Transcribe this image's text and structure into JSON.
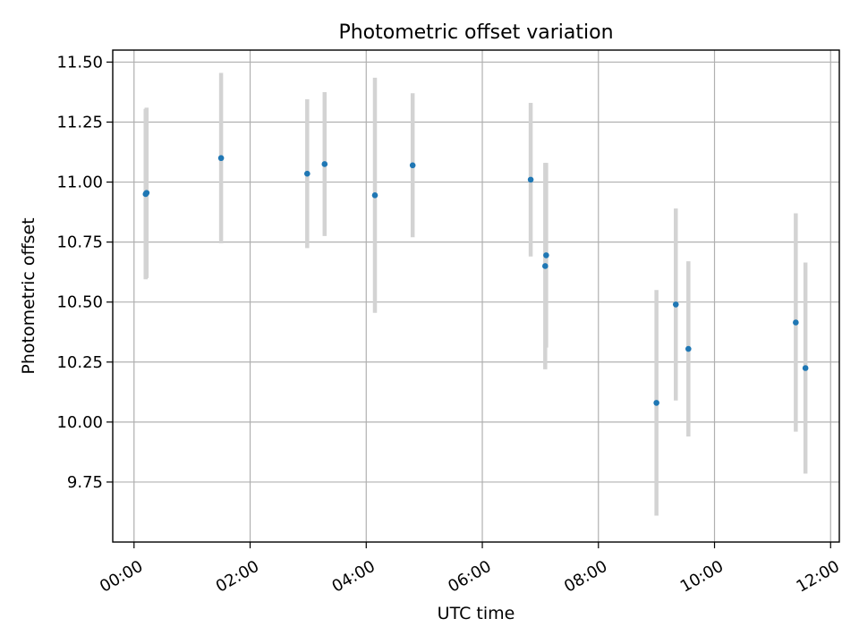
{
  "chart_data": {
    "type": "scatter",
    "title": "Photometric offset variation",
    "xlabel": "UTC time",
    "ylabel": "Photometric offset",
    "x_unit": "hours UTC",
    "xlim": [
      "-00:22",
      "12:09"
    ],
    "ylim": [
      9.5,
      11.55
    ],
    "x_ticks": [
      "00:00",
      "02:00",
      "04:00",
      "06:00",
      "08:00",
      "10:00",
      "12:00"
    ],
    "y_ticks": [
      "9.75",
      "10.00",
      "10.25",
      "10.50",
      "10.75",
      "11.00",
      "11.25",
      "11.50"
    ],
    "grid": true,
    "marker_color": "#1f77b4",
    "errorbar_color": "#d3d3d3",
    "points": [
      {
        "x": "00:12",
        "y": 10.95,
        "yerr": 0.355
      },
      {
        "x": "00:13",
        "y": 10.955,
        "yerr": 0.355
      },
      {
        "x": "01:30",
        "y": 11.1,
        "yerr": 0.355
      },
      {
        "x": "02:59",
        "y": 11.035,
        "yerr": 0.31
      },
      {
        "x": "03:17",
        "y": 11.075,
        "yerr": 0.3
      },
      {
        "x": "04:09",
        "y": 10.945,
        "yerr": 0.49
      },
      {
        "x": "04:48",
        "y": 11.07,
        "yerr": 0.3
      },
      {
        "x": "06:50",
        "y": 11.01,
        "yerr": 0.32
      },
      {
        "x": "07:05",
        "y": 10.65,
        "yerr": 0.43
      },
      {
        "x": "07:06",
        "y": 10.695,
        "yerr": 0.385
      },
      {
        "x": "09:00",
        "y": 10.08,
        "yerr": 0.47
      },
      {
        "x": "09:20",
        "y": 10.49,
        "yerr": 0.4
      },
      {
        "x": "09:33",
        "y": 10.305,
        "yerr": 0.365
      },
      {
        "x": "11:24",
        "y": 10.415,
        "yerr": 0.455
      },
      {
        "x": "11:34",
        "y": 10.225,
        "yerr": 0.44
      }
    ]
  }
}
